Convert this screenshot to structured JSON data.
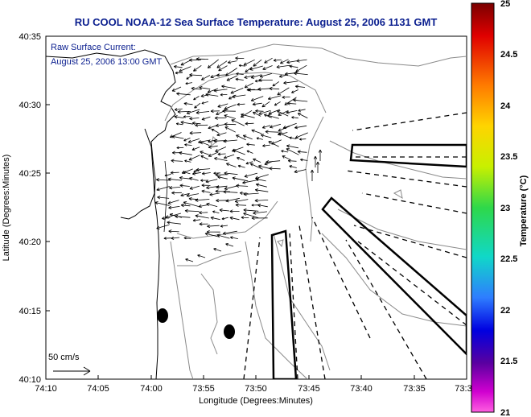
{
  "title": "RU COOL  NOAA-12  Sea Surface Temperature:  August 25, 2006 1131 GMT",
  "annotation": {
    "line1": "Raw Surface Current:",
    "line2": "August 25, 2006 13:00 GMT"
  },
  "scale_label": "50 cm/s",
  "x_axis": {
    "label": "Longitude (Degrees:Minutes)",
    "ticks": [
      "74:10",
      "74:05",
      "74:00",
      "73:55",
      "73:50",
      "73:45",
      "73:40",
      "73:35",
      "73:3"
    ]
  },
  "y_axis": {
    "label": "Latitude (Degrees:Minutes)",
    "ticks": [
      "40:35",
      "40:30",
      "40:25",
      "40:20",
      "40:15",
      "40:10"
    ]
  },
  "colorbar": {
    "label": "Temperature (°C)",
    "ticks": [
      "25",
      "24.5",
      "24",
      "23.5",
      "23",
      "22.5",
      "22",
      "21.5",
      "21"
    ],
    "min": 21,
    "max": 25
  },
  "chart_data": {
    "type": "map",
    "extent": {
      "lon_min": -74.1667,
      "lon_max": -73.5,
      "lat_min": 40.1667,
      "lat_max": 40.5833
    },
    "markers": [
      {
        "name": "dot",
        "lon": -73.98,
        "lat": 40.245
      },
      {
        "name": "dot",
        "lon": -73.873,
        "lat": 40.224
      }
    ]
  }
}
